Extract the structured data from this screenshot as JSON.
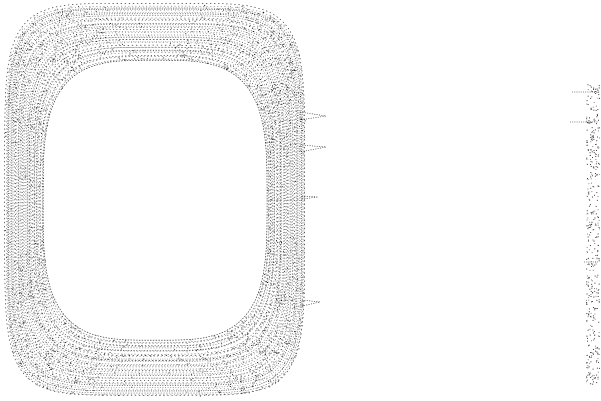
{
  "canvas": {
    "background": "#ffffff",
    "ink": "#111111",
    "ink_light": "#6a6a6a"
  },
  "shapes": [
    {
      "kind": "nested-rounded-rectangle-contours",
      "style": "stipple"
    },
    {
      "kind": "stipple-fragment"
    }
  ]
}
